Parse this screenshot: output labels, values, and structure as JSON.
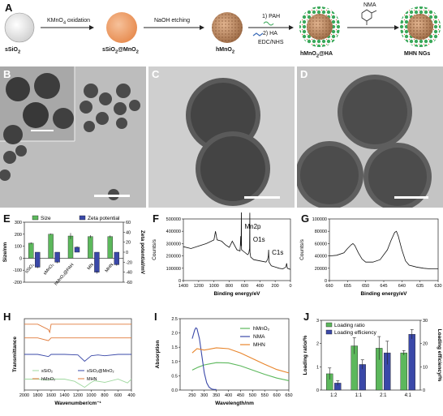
{
  "panel_letters": {
    "a": "A",
    "b": "B",
    "c": "C",
    "d": "D",
    "e": "E",
    "f": "F",
    "g": "G",
    "h": "H",
    "i": "I",
    "j": "J"
  },
  "schematic": {
    "steps": [
      {
        "material": "sSiO",
        "material_sub": "2"
      },
      {
        "material": "sSiO",
        "material_sub": "2",
        "material_suffix": "@MnO",
        "material_sub2": "2"
      },
      {
        "material": "hMnO",
        "material_sub": "2"
      },
      {
        "material": "hMnO",
        "material_sub": "2",
        "material_suffix": "@HA"
      },
      {
        "material": "MHN NGs"
      }
    ],
    "arrow1": {
      "pre": "KMnO",
      "sub": "4",
      "post": " oxidation"
    },
    "arrow2": "NaOH etching",
    "arrow3a": "1) PAH",
    "arrow3b": "2) HA",
    "arrow3c": "EDC/NHS",
    "arrow4": "NMA"
  },
  "chart_data": [
    {
      "panel": "E",
      "type": "bar",
      "categories": [
        "sSiO₂",
        "sMnO₂",
        "hMnO₂@PAH",
        "MN",
        "MHN"
      ],
      "series": [
        {
          "name": "Size",
          "color": "#5cb85c",
          "values": [
            125,
            200,
            185,
            180,
            180
          ],
          "errors": [
            8,
            5,
            25,
            12,
            10
          ]
        },
        {
          "name": "Zeta potential",
          "color": "#3a48a8",
          "values": [
            -30,
            -20,
            10,
            -40,
            -25
          ],
          "errors": [
            2,
            2,
            2,
            3,
            2
          ]
        }
      ],
      "ylabel": "Size/nm",
      "ylim": [
        -200,
        300
      ],
      "yticks": [
        "300",
        "200",
        "100",
        "0",
        "-100",
        "-200"
      ],
      "y2label": "Zeta potential/mV",
      "y2lim": [
        -60,
        60
      ],
      "y2ticks": [
        "60",
        "40",
        "20",
        "0",
        "-20",
        "-40",
        "-60"
      ]
    },
    {
      "panel": "F",
      "type": "line",
      "xlabel": "Binding energy/eV",
      "ylabel": "Counts/s",
      "xlim": [
        1400,
        0
      ],
      "ylim": [
        0,
        500000
      ],
      "xticks": [
        "1400",
        "1200",
        "1000",
        "800",
        "600",
        "400",
        "200",
        "0"
      ],
      "yticks": [
        "500000",
        "400000",
        "300000",
        "200000",
        "100000",
        "0"
      ],
      "annotations": [
        "Mn2p",
        "O1s",
        "C1s"
      ],
      "x": [
        1400,
        1300,
        1200,
        1100,
        1000,
        980,
        960,
        900,
        850,
        800,
        760,
        700,
        660,
        655,
        650,
        645,
        642,
        640,
        600,
        560,
        545,
        535,
        531,
        529,
        520,
        480,
        400,
        320,
        300,
        290,
        285,
        280,
        250,
        200,
        150,
        100,
        60,
        50,
        40,
        0
      ],
      "y": [
        275000,
        260000,
        280000,
        300000,
        330000,
        400000,
        330000,
        320000,
        290000,
        270000,
        320000,
        250000,
        240000,
        280000,
        360000,
        280000,
        600000,
        250000,
        230000,
        210000,
        220000,
        260000,
        550000,
        230000,
        190000,
        170000,
        160000,
        150000,
        170000,
        200000,
        250000,
        150000,
        120000,
        110000,
        100000,
        95000,
        110000,
        140000,
        100000,
        90000
      ]
    },
    {
      "panel": "G",
      "type": "line",
      "xlabel": "Binding energy/eV",
      "ylabel": "Counts/s",
      "xlim": [
        660,
        630
      ],
      "ylim": [
        0,
        100000
      ],
      "xticks": [
        "660",
        "655",
        "650",
        "645",
        "640",
        "635",
        "630"
      ],
      "yticks": [
        "100000",
        "80000",
        "60000",
        "40000",
        "20000",
        "0"
      ],
      "x": [
        660,
        658,
        656,
        655,
        654,
        653.5,
        653,
        652,
        651,
        650,
        648,
        646,
        644,
        643,
        642,
        641.5,
        641,
        640,
        639,
        638,
        636,
        634,
        632,
        630
      ],
      "y": [
        40000,
        41000,
        45000,
        52000,
        58000,
        60000,
        57000,
        45000,
        35000,
        30000,
        30000,
        34000,
        50000,
        65000,
        78000,
        80000,
        72000,
        50000,
        32000,
        25000,
        22000,
        20000,
        19000,
        19000
      ]
    },
    {
      "panel": "H",
      "type": "line",
      "xlabel": "Wavenumber/cm⁻¹",
      "ylabel": "Transmittance",
      "xlim": [
        2000,
        400
      ],
      "xticks": [
        "2000",
        "1800",
        "1600",
        "1400",
        "1200",
        "1000",
        "800",
        "600",
        "400"
      ],
      "series": [
        {
          "name": "sSiO₂",
          "color": "#9fd89f",
          "x": [
            2000,
            1800,
            1640,
            1600,
            1400,
            1250,
            1100,
            1000,
            950,
            800,
            600,
            460,
            400
          ],
          "y": [
            0.4,
            0.4,
            0.36,
            0.4,
            0.4,
            0.32,
            0.1,
            0.28,
            0.34,
            0.28,
            0.4,
            0.26,
            0.4
          ]
        },
        {
          "name": "sSiO₂@MnO₂",
          "color": "#3a48a8",
          "x": [
            2000,
            1800,
            1640,
            1600,
            1400,
            1200,
            1100,
            1000,
            900,
            800,
            600,
            400
          ],
          "y": [
            1.3,
            1.3,
            1.22,
            1.3,
            1.3,
            1.28,
            1.05,
            1.25,
            1.28,
            1.25,
            1.3,
            1.3
          ]
        },
        {
          "name": "hMnO₂",
          "color": "#e07a3a",
          "x": [
            2000,
            1800,
            1640,
            1600,
            1400,
            1200,
            1000,
            800,
            600,
            400
          ],
          "y": [
            1.9,
            1.9,
            1.8,
            1.9,
            1.9,
            1.9,
            1.9,
            1.9,
            1.9,
            1.9
          ]
        },
        {
          "name": "MHN",
          "color": "#e07a3a",
          "x": [
            2000,
            1800,
            1640,
            1620,
            1600,
            1400,
            1200,
            1000,
            800,
            600,
            400
          ],
          "y": [
            2.4,
            2.4,
            2.2,
            2.1,
            2.4,
            2.4,
            2.4,
            2.4,
            2.4,
            2.4,
            2.4
          ]
        }
      ]
    },
    {
      "panel": "I",
      "type": "line",
      "xlabel": "Wavelength/nm",
      "ylabel": "Absorption",
      "xlim": [
        200,
        650
      ],
      "ylim": [
        0,
        2.5
      ],
      "xticks": [
        "250",
        "300",
        "350",
        "400",
        "450",
        "500",
        "550",
        "600",
        "650"
      ],
      "yticks": [
        "0.0",
        "0.5",
        "1.0",
        "1.5",
        "2.0",
        "2.5"
      ],
      "series": [
        {
          "name": "hMnO₂",
          "color": "#5cb85c",
          "x": [
            250,
            275,
            300,
            350,
            400,
            450,
            500,
            550,
            600,
            650
          ],
          "y": [
            0.7,
            0.8,
            0.88,
            0.96,
            0.95,
            0.85,
            0.7,
            0.55,
            0.42,
            0.33
          ]
        },
        {
          "name": "NMA",
          "color": "#3a48a8",
          "x": [
            250,
            260,
            265,
            270,
            280,
            290,
            300,
            310,
            320,
            330,
            340,
            350
          ],
          "y": [
            1.8,
            2.1,
            2.18,
            2.15,
            1.8,
            1.2,
            0.6,
            0.25,
            0.1,
            0.04,
            0.02,
            0.02
          ]
        },
        {
          "name": "MHN",
          "color": "#e8842a",
          "x": [
            250,
            270,
            300,
            350,
            400,
            450,
            500,
            550,
            600,
            650
          ],
          "y": [
            1.3,
            1.45,
            1.4,
            1.48,
            1.45,
            1.3,
            1.1,
            0.9,
            0.72,
            0.6
          ]
        }
      ]
    },
    {
      "panel": "J",
      "type": "bar",
      "categories": [
        "1:2",
        "1:1",
        "2:1",
        "4:1"
      ],
      "series": [
        {
          "name": "Loading ratio",
          "color": "#5cb85c",
          "values": [
            0.7,
            1.9,
            1.8,
            1.6
          ],
          "errors": [
            0.25,
            0.35,
            0.5,
            0.1
          ]
        },
        {
          "name": "Loading efficiency",
          "color": "#3a48a8",
          "values": [
            3,
            11,
            16,
            24
          ],
          "errors": [
            1,
            2,
            5,
            2
          ]
        }
      ],
      "ylabel": "Loading ratio/%",
      "ylim": [
        0,
        3
      ],
      "yticks": [
        "3",
        "2",
        "1",
        "0"
      ],
      "y2label": "Loading efficiency/%",
      "y2lim": [
        0,
        30
      ],
      "y2ticks": [
        "30",
        "20",
        "10",
        "0"
      ]
    }
  ]
}
